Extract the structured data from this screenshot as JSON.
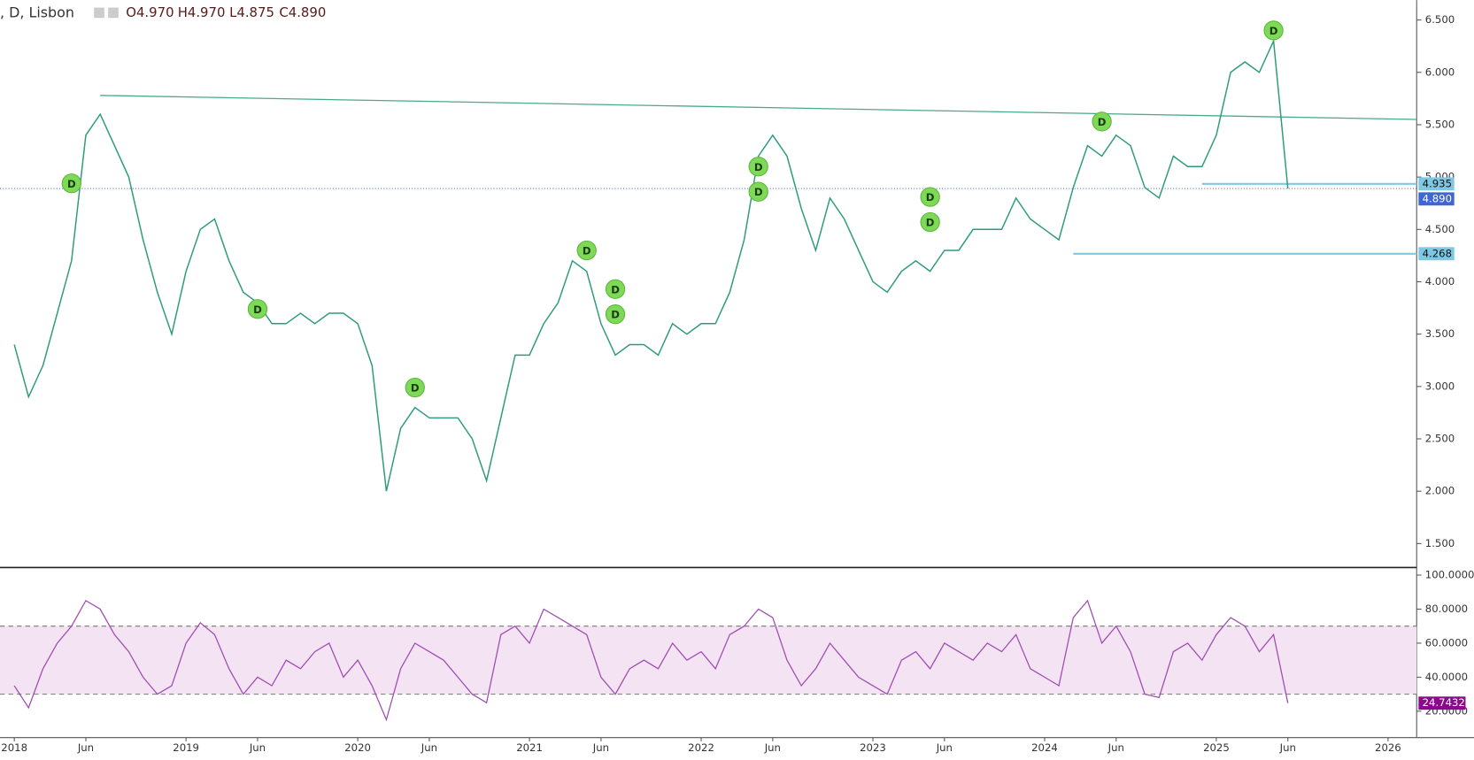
{
  "chart_data": [
    {
      "type": "line",
      "symbol": ", D, Lisbon",
      "ohlc": [
        "O4.970",
        "H4.970",
        "L4.875",
        "C4.890"
      ],
      "color": "#2e9c7c",
      "x": [
        "2018-01",
        "2018-02",
        "2018-03",
        "2018-04",
        "2018-05",
        "2018-06",
        "2018-07",
        "2018-08",
        "2018-09",
        "2018-10",
        "2018-11",
        "2018-12",
        "2019-01",
        "2019-02",
        "2019-03",
        "2019-04",
        "2019-05",
        "2019-06",
        "2019-07",
        "2019-08",
        "2019-09",
        "2019-10",
        "2019-11",
        "2019-12",
        "2020-01",
        "2020-02",
        "2020-03",
        "2020-04",
        "2020-05",
        "2020-06",
        "2020-07",
        "2020-08",
        "2020-09",
        "2020-10",
        "2020-11",
        "2020-12",
        "2021-01",
        "2021-02",
        "2021-03",
        "2021-04",
        "2021-05",
        "2021-06",
        "2021-07",
        "2021-08",
        "2021-09",
        "2021-10",
        "2021-11",
        "2021-12",
        "2022-01",
        "2022-02",
        "2022-03",
        "2022-04",
        "2022-05",
        "2022-06",
        "2022-07",
        "2022-08",
        "2022-09",
        "2022-10",
        "2022-11",
        "2022-12",
        "2023-01",
        "2023-02",
        "2023-03",
        "2023-04",
        "2023-05",
        "2023-06",
        "2023-07",
        "2023-08",
        "2023-09",
        "2023-10",
        "2023-11",
        "2023-12",
        "2024-01",
        "2024-02",
        "2024-03",
        "2024-04",
        "2024-05",
        "2024-06",
        "2024-07",
        "2024-08",
        "2024-09",
        "2024-10",
        "2024-11",
        "2024-12",
        "2025-01",
        "2025-02",
        "2025-03",
        "2025-04",
        "2025-05",
        "2025-06"
      ],
      "values": [
        3.4,
        2.9,
        3.2,
        3.7,
        4.2,
        5.4,
        5.6,
        5.3,
        5.0,
        4.4,
        3.9,
        3.5,
        4.1,
        4.5,
        4.6,
        4.2,
        3.9,
        3.8,
        3.6,
        3.6,
        3.7,
        3.6,
        3.7,
        3.7,
        3.6,
        3.2,
        2.0,
        2.6,
        2.8,
        2.7,
        2.7,
        2.7,
        2.5,
        2.1,
        2.7,
        3.3,
        3.3,
        3.6,
        3.8,
        4.2,
        4.1,
        3.6,
        3.3,
        3.4,
        3.4,
        3.3,
        3.6,
        3.5,
        3.6,
        3.6,
        3.9,
        4.4,
        5.2,
        5.4,
        5.2,
        4.7,
        4.3,
        4.8,
        4.6,
        4.3,
        4.0,
        3.9,
        4.1,
        4.2,
        4.1,
        4.3,
        4.3,
        4.5,
        4.5,
        4.5,
        4.8,
        4.6,
        4.5,
        4.4,
        4.9,
        5.3,
        5.2,
        5.4,
        5.3,
        4.9,
        4.8,
        5.2,
        5.1,
        5.1,
        5.4,
        6.0,
        6.1,
        6.0,
        6.3,
        4.89
      ],
      "xlim": [
        "2017-12",
        "2026-03"
      ],
      "xticks": [
        {
          "value": "2018-01",
          "label": "2018"
        },
        {
          "value": "2018-06",
          "label": "Jun"
        },
        {
          "value": "2019-01",
          "label": "2019"
        },
        {
          "value": "2019-06",
          "label": "Jun"
        },
        {
          "value": "2020-01",
          "label": "2020"
        },
        {
          "value": "2020-06",
          "label": "Jun"
        },
        {
          "value": "2021-01",
          "label": "2021"
        },
        {
          "value": "2021-06",
          "label": "Jun"
        },
        {
          "value": "2022-01",
          "label": "2022"
        },
        {
          "value": "2022-06",
          "label": "Jun"
        },
        {
          "value": "2023-01",
          "label": "2023"
        },
        {
          "value": "2023-06",
          "label": "Jun"
        },
        {
          "value": "2024-01",
          "label": "2024"
        },
        {
          "value": "2024-06",
          "label": "Jun"
        },
        {
          "value": "2025-01",
          "label": "2025"
        },
        {
          "value": "2025-06",
          "label": "Jun"
        },
        {
          "value": "2026-01",
          "label": "2026"
        }
      ],
      "ylim": [
        1.28,
        6.69
      ],
      "yticks": [
        {
          "value": 1.5,
          "label": "1.500"
        },
        {
          "value": 2,
          "label": "2.000"
        },
        {
          "value": 2.5,
          "label": "2.500"
        },
        {
          "value": 3,
          "label": "3.000"
        },
        {
          "value": 3.5,
          "label": "3.500"
        },
        {
          "value": 4,
          "label": "4.000"
        },
        {
          "value": 4.5,
          "label": "4.500"
        },
        {
          "value": 5,
          "label": "5.000"
        },
        {
          "value": 5.5,
          "label": "5.500"
        },
        {
          "value": 6,
          "label": "6.000"
        },
        {
          "value": 6.5,
          "label": "6.500"
        }
      ],
      "trendline": {
        "color": "#4aa88c",
        "x": [
          "2018-07",
          "2026-03"
        ],
        "values": [
          5.78,
          5.55
        ]
      },
      "levels": [
        {
          "value": 4.935,
          "label": "4.935",
          "start": "2024-12",
          "color": "#7ec8e3"
        },
        {
          "value": 4.268,
          "label": "4.268",
          "start": "2024-03",
          "color": "#7ec8e3"
        }
      ],
      "last_price": {
        "value": 4.89,
        "label": "4.890",
        "color": "#3f66d4"
      },
      "markers": [
        {
          "x": "2018-05",
          "value": 4.94,
          "label": "D"
        },
        {
          "x": "2019-06",
          "value": 3.74,
          "label": "D"
        },
        {
          "x": "2020-05",
          "value": 2.99,
          "label": "D"
        },
        {
          "x": "2021-05",
          "value": 4.3,
          "label": "D"
        },
        {
          "x": "2021-07",
          "value": 3.93,
          "label": "D"
        },
        {
          "x": "2021-07",
          "value": 3.69,
          "label": "D"
        },
        {
          "x": "2022-05",
          "value": 5.1,
          "label": "D"
        },
        {
          "x": "2022-05",
          "value": 4.86,
          "label": "D"
        },
        {
          "x": "2023-05",
          "value": 4.81,
          "label": "D"
        },
        {
          "x": "2023-05",
          "value": 4.57,
          "label": "D"
        },
        {
          "x": "2024-05",
          "value": 5.53,
          "label": "D"
        },
        {
          "x": "2025-05",
          "value": 6.4,
          "label": "D"
        }
      ]
    },
    {
      "type": "line",
      "color": "#a04cb4",
      "values": [
        35,
        22,
        45,
        60,
        70,
        85,
        80,
        65,
        55,
        40,
        30,
        35,
        60,
        72,
        65,
        45,
        30,
        40,
        35,
        50,
        45,
        55,
        60,
        40,
        50,
        35,
        15,
        45,
        60,
        55,
        50,
        40,
        30,
        25,
        65,
        70,
        60,
        80,
        75,
        70,
        65,
        40,
        30,
        45,
        50,
        45,
        60,
        50,
        55,
        45,
        65,
        70,
        80,
        75,
        50,
        35,
        45,
        60,
        50,
        40,
        35,
        30,
        50,
        55,
        45,
        60,
        55,
        50,
        60,
        55,
        65,
        45,
        40,
        35,
        75,
        85,
        60,
        70,
        55,
        30,
        28,
        55,
        60,
        50,
        65,
        75,
        70,
        55,
        65,
        24.7432
      ],
      "ylim": [
        4.5,
        103.9
      ],
      "yticks": [
        {
          "value": 20,
          "label": "20.0000"
        },
        {
          "value": 40,
          "label": "40.0000"
        },
        {
          "value": 60,
          "label": "60.0000"
        },
        {
          "value": 80,
          "label": "80.0000"
        },
        {
          "value": 100,
          "label": "100.0000"
        }
      ],
      "bands": [
        30,
        70
      ],
      "last_value": {
        "value": 24.7432,
        "label": "24.7432",
        "color": "#8a0a8a"
      }
    }
  ]
}
